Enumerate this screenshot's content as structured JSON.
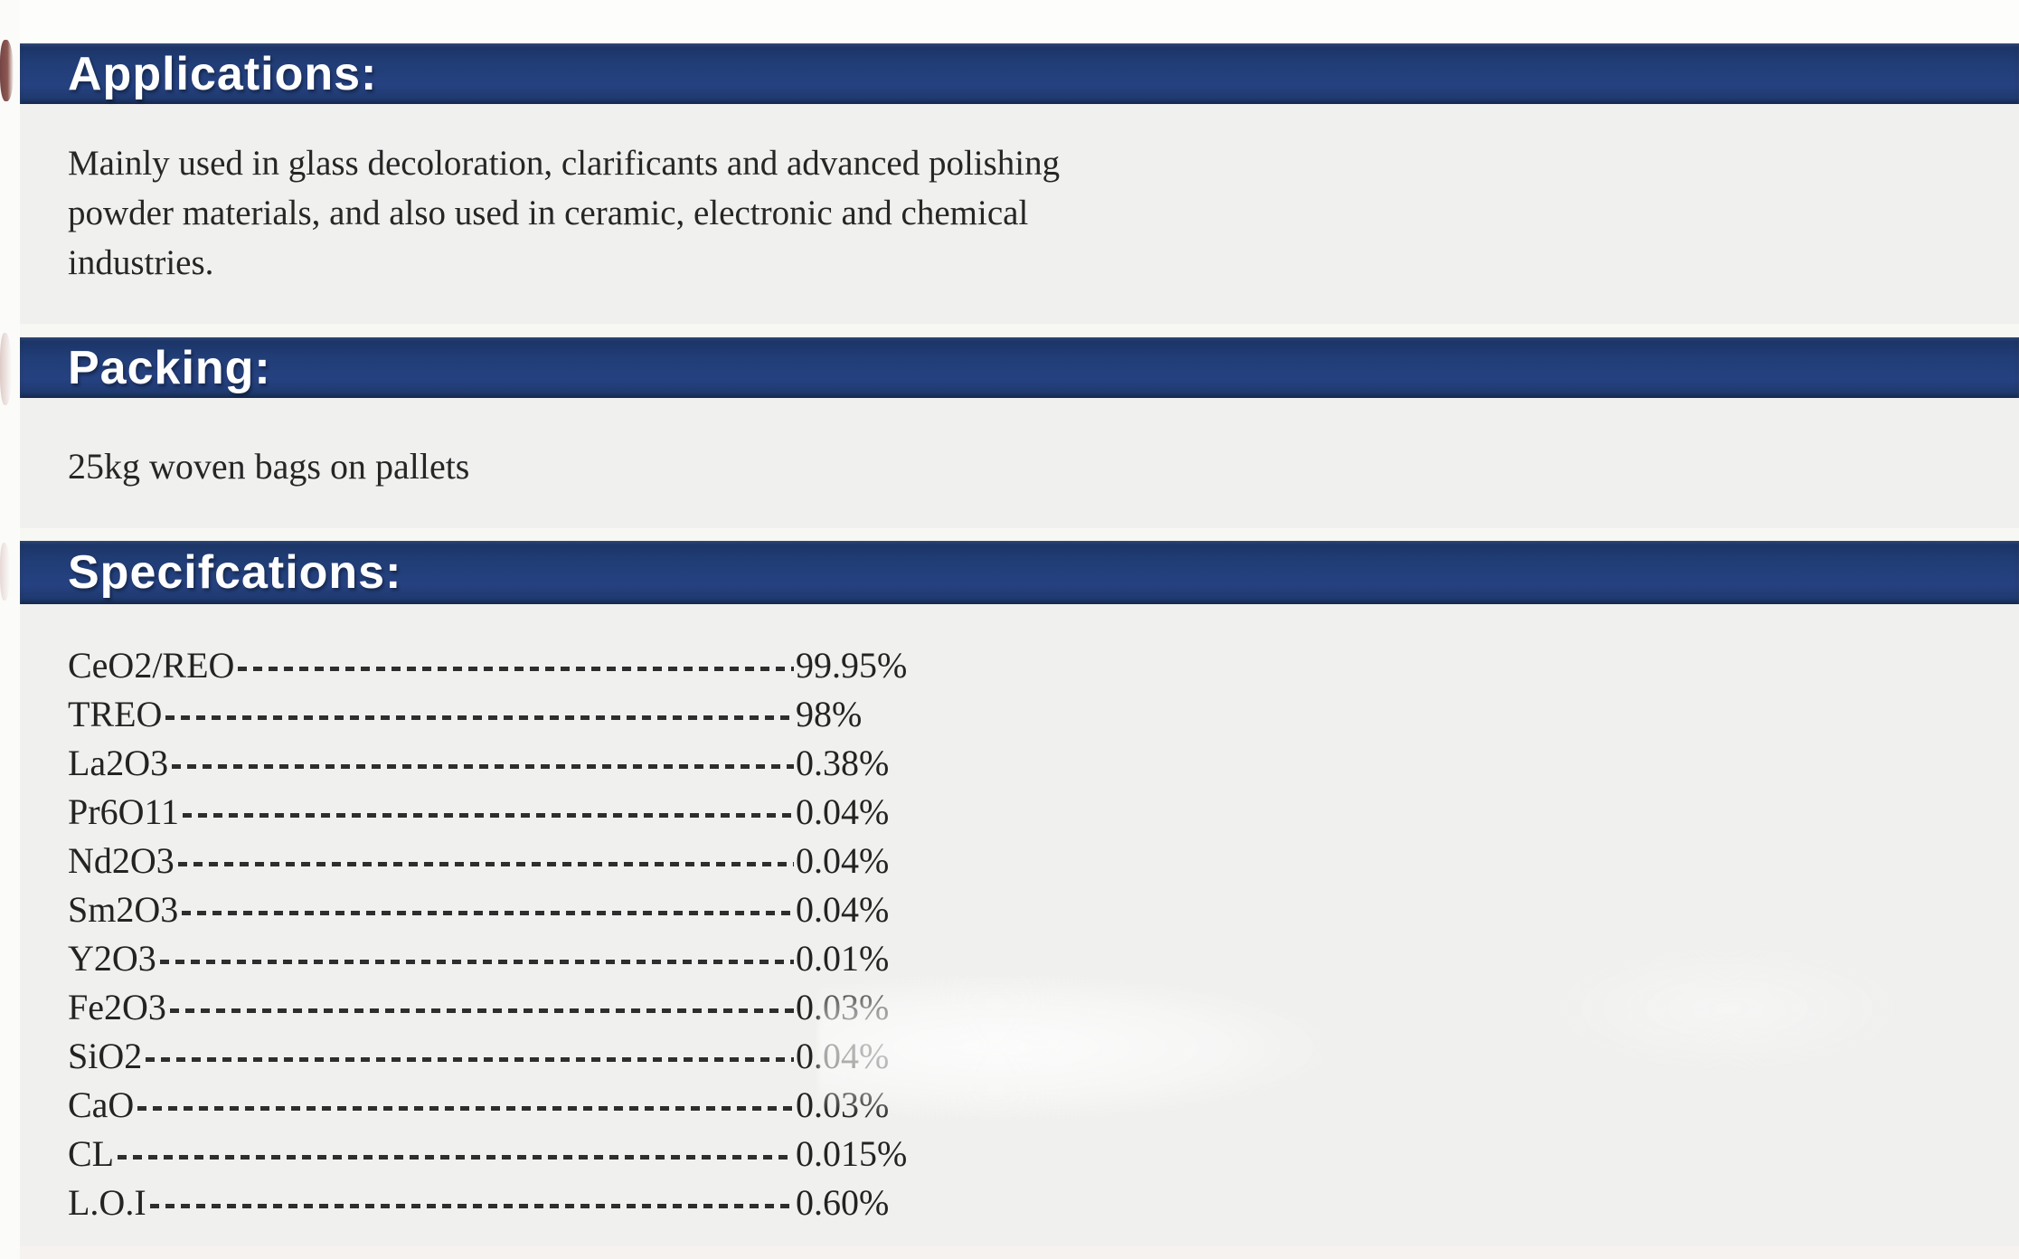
{
  "colors": {
    "banner_navy": "#223e78",
    "banner_text": "#ffffff",
    "body_background": "#f0f0ee",
    "text": "#262626",
    "left_margin_artifact_red": "#5d2424"
  },
  "sections": {
    "applications": {
      "title": "Applications:",
      "body_lines": [
        "Mainly used in glass decoloration, clarificants and advanced polishing",
        "powder materials, and also used in ceramic, electronic and chemical",
        "industries."
      ]
    },
    "packing": {
      "title": "Packing:",
      "body": "25kg woven bags on pallets"
    },
    "specifications": {
      "title": "Specifcations:",
      "rows": [
        {
          "label": "CeO2/REO",
          "value": "99.95%"
        },
        {
          "label": "TREO",
          "value": "98%"
        },
        {
          "label": "La2O3",
          "value": "0.38%"
        },
        {
          "label": "Pr6O11",
          "value": "0.04%"
        },
        {
          "label": "Nd2O3",
          "value": "0.04%"
        },
        {
          "label": "Sm2O3",
          "value": "0.04%"
        },
        {
          "label": "Y2O3",
          "value": "0.01%"
        },
        {
          "label": "Fe2O3",
          "value": "0.03%"
        },
        {
          "label": "SiO2",
          "value": "0.04%"
        },
        {
          "label": "CaO",
          "value": "0.03%"
        },
        {
          "label": "CL",
          "value": "0.015%"
        },
        {
          "label": "L.O.I",
          "value": "0.60%"
        }
      ]
    }
  }
}
